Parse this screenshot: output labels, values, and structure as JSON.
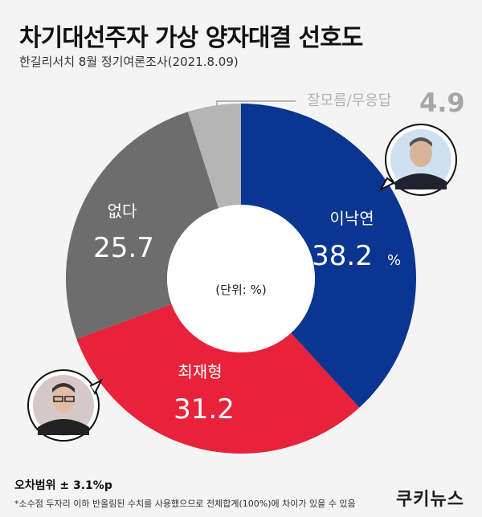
{
  "header": {
    "title": "차기대선주자 가상 양자대결 선호도",
    "subtitle": "한길리서치 8월 정기여론조사(2021.8.09)"
  },
  "chart_data": {
    "type": "pie",
    "donut": true,
    "unit_label": "(단위: %)",
    "slices": [
      {
        "name": "이낙연",
        "value": 38.2,
        "color": "#0a3591",
        "suffix": "%"
      },
      {
        "name": "최재형",
        "value": 31.2,
        "color": "#e8223a"
      },
      {
        "name": "없다",
        "value": 25.7,
        "color": "#6d6d6d"
      },
      {
        "name": "잘모름/무응답",
        "value": 4.9,
        "color": "#b5b5b5"
      }
    ]
  },
  "footer": {
    "margin_of_error": "오차범위 ± 3.1%p",
    "note": "*소수점 두자리 이하 반올림된 수치를 사용했으므로 전체합계(100%)에 차이가 있을 수 있음",
    "brand": "쿠키뉴스"
  }
}
